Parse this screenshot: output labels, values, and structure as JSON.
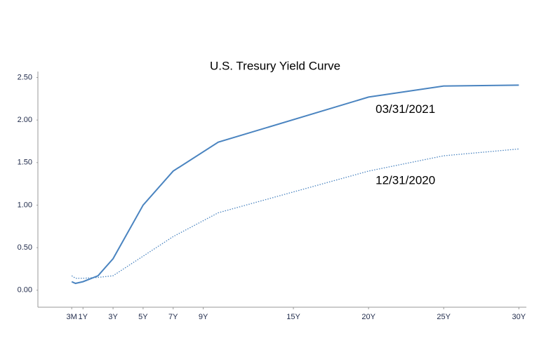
{
  "chart_data": {
    "type": "line",
    "title": "U.S. Tresury Yield Curve",
    "x": [
      0.25,
      0.5,
      1,
      2,
      3,
      5,
      7,
      10,
      20,
      25,
      30
    ],
    "series": [
      {
        "name": "03/31/2021",
        "color": "#4a84c0",
        "style": "solid",
        "values": [
          0.1,
          0.08,
          0.1,
          0.17,
          0.37,
          1.0,
          1.4,
          1.74,
          2.27,
          2.4,
          2.41
        ]
      },
      {
        "name": "12/31/2020",
        "color": "#4a84c0",
        "style": "dotted",
        "values": [
          0.17,
          0.14,
          0.14,
          0.15,
          0.17,
          0.4,
          0.63,
          0.91,
          1.4,
          1.58,
          1.66
        ]
      }
    ],
    "xlim": [
      -2,
      30.5
    ],
    "xticks": [
      {
        "value": 0.25,
        "label": "3M"
      },
      {
        "value": 1,
        "label": "1Y"
      },
      {
        "value": 3,
        "label": "3Y"
      },
      {
        "value": 5,
        "label": "5Y"
      },
      {
        "value": 7,
        "label": "7Y"
      },
      {
        "value": 9,
        "label": "9Y"
      },
      {
        "value": 15,
        "label": "15Y"
      },
      {
        "value": 20,
        "label": "20Y"
      },
      {
        "value": 25,
        "label": "25Y"
      },
      {
        "value": 30,
        "label": "30Y"
      }
    ],
    "ylim": [
      -0.2,
      2.57
    ],
    "yticks": [
      {
        "value": 0,
        "label": "0.00"
      },
      {
        "value": 0.5,
        "label": "0.50"
      },
      {
        "value": 1,
        "label": "1.00"
      },
      {
        "value": 1.5,
        "label": "1.50"
      },
      {
        "value": 2,
        "label": "2.00"
      },
      {
        "value": 2.5,
        "label": "2.50"
      }
    ],
    "grid": false
  }
}
